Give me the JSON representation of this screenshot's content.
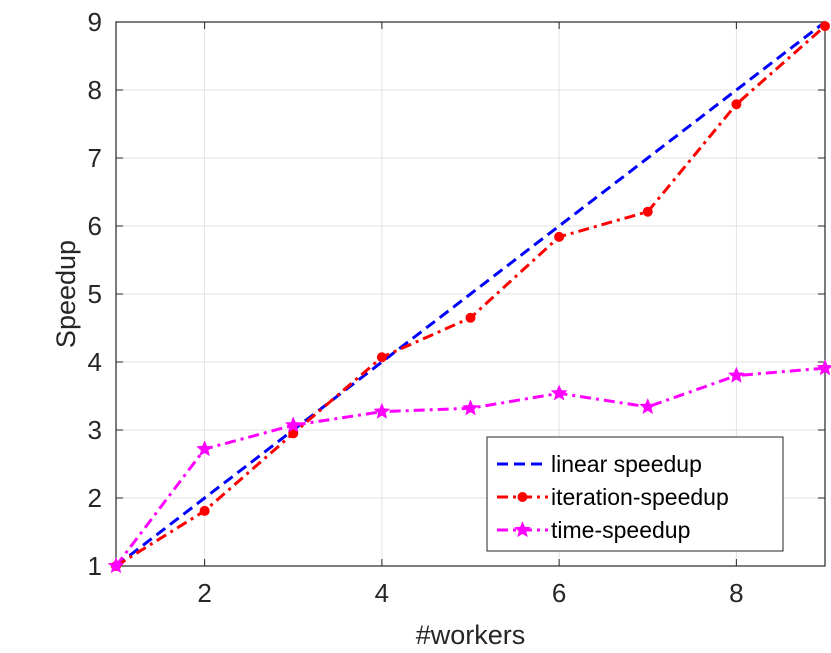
{
  "chart_data": {
    "type": "line",
    "xlabel": "#workers",
    "ylabel": "Speedup",
    "xlim": [
      1,
      9
    ],
    "ylim": [
      1,
      9
    ],
    "xticks": [
      2,
      4,
      6,
      8
    ],
    "yticks": [
      1,
      2,
      3,
      4,
      5,
      6,
      7,
      8,
      9
    ],
    "grid": true,
    "legend_position": "bottom-right",
    "x": [
      1,
      2,
      3,
      4,
      5,
      6,
      7,
      8,
      9
    ],
    "series": [
      {
        "name": "linear speedup",
        "values": [
          1,
          2,
          3,
          4,
          5,
          6,
          7,
          8,
          9
        ],
        "color": "#0000ff",
        "line_style": "dashed",
        "marker": "none"
      },
      {
        "name": "iteration-speedup",
        "values": [
          1.0,
          1.81,
          2.95,
          4.07,
          4.65,
          5.84,
          6.21,
          7.79,
          8.94
        ],
        "color": "#ff0000",
        "line_style": "dash-dot",
        "marker": "circle"
      },
      {
        "name": "time-speedup",
        "values": [
          1.0,
          2.72,
          3.07,
          3.27,
          3.32,
          3.54,
          3.34,
          3.8,
          3.91
        ],
        "color": "#ff00ff",
        "line_style": "dash-dot",
        "marker": "star"
      }
    ]
  }
}
